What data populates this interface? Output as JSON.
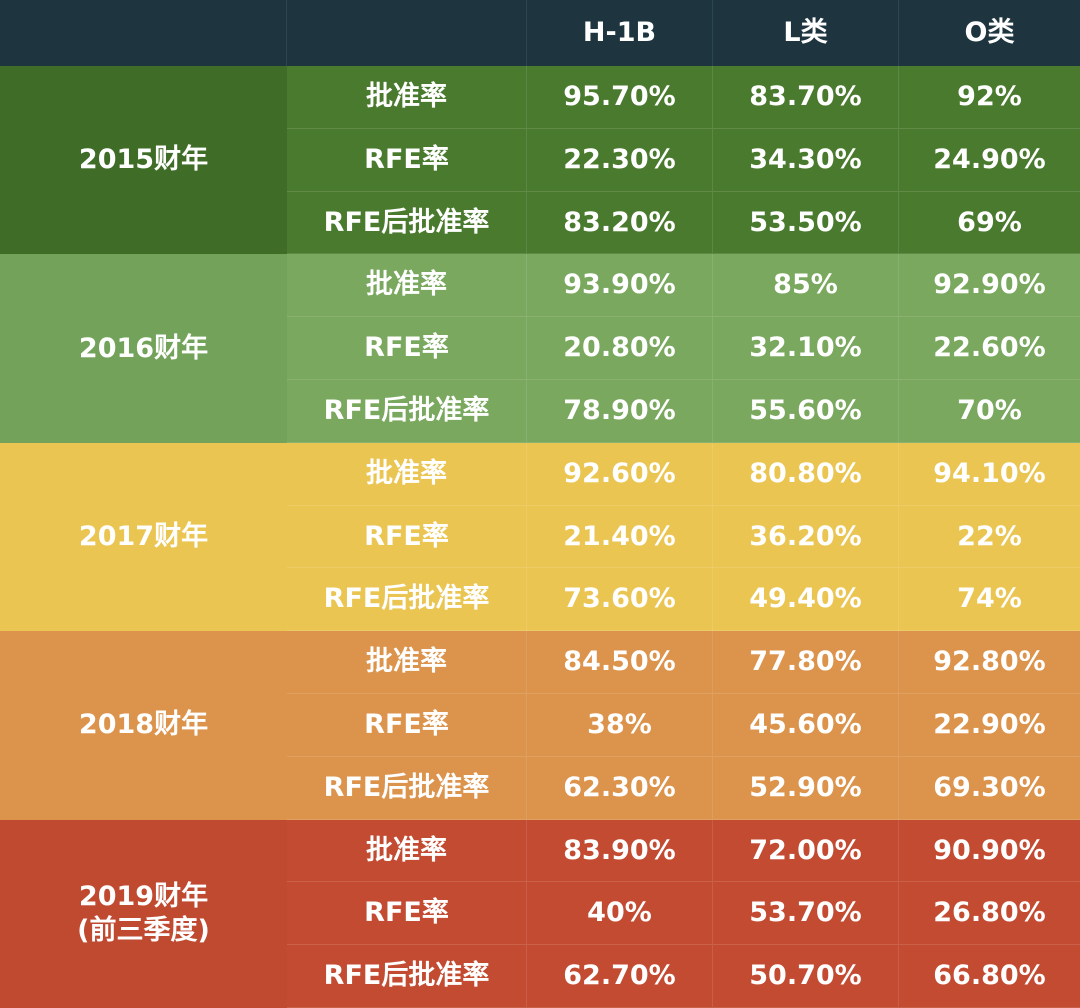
{
  "chart_data": {
    "type": "table",
    "columns": [
      "",
      "",
      "H-1B",
      "L类",
      "O类"
    ],
    "metrics": [
      "批准率",
      "RFE率",
      "RFE后批准率"
    ],
    "groups": [
      {
        "year": "2015财年",
        "color_year": "#3f6c27",
        "color_body": "#4a7a2e",
        "rows": [
          {
            "metric": "批准率",
            "values": [
              "95.70%",
              "83.70%",
              "92%"
            ]
          },
          {
            "metric": "RFE率",
            "values": [
              "22.30%",
              "34.30%",
              "24.90%"
            ]
          },
          {
            "metric": "RFE后批准率",
            "values": [
              "83.20%",
              "53.50%",
              "69%"
            ]
          }
        ]
      },
      {
        "year": "2016财年",
        "color_year": "#73a35a",
        "color_body": "#79a85e",
        "rows": [
          {
            "metric": "批准率",
            "values": [
              "93.90%",
              "85%",
              "92.90%"
            ]
          },
          {
            "metric": "RFE率",
            "values": [
              "20.80%",
              "32.10%",
              "22.60%"
            ]
          },
          {
            "metric": "RFE后批准率",
            "values": [
              "78.90%",
              "55.60%",
              "70%"
            ]
          }
        ]
      },
      {
        "year": "2017财年",
        "color_year": "#ebc552",
        "color_body": "#ebc552",
        "rows": [
          {
            "metric": "批准率",
            "values": [
              "92.60%",
              "80.80%",
              "94.10%"
            ]
          },
          {
            "metric": "RFE率",
            "values": [
              "21.40%",
              "36.20%",
              "22%"
            ]
          },
          {
            "metric": "RFE后批准率",
            "values": [
              "73.60%",
              "49.40%",
              "74%"
            ]
          }
        ]
      },
      {
        "year": "2018财年",
        "color_year": "#dc934b",
        "color_body": "#dc934b",
        "rows": [
          {
            "metric": "批准率",
            "values": [
              "84.50%",
              "77.80%",
              "92.80%"
            ]
          },
          {
            "metric": "RFE率",
            "values": [
              "38%",
              "45.60%",
              "22.90%"
            ]
          },
          {
            "metric": "RFE后批准率",
            "values": [
              "62.30%",
              "52.90%",
              "69.30%"
            ]
          }
        ]
      },
      {
        "year": "2019财年\n(前三季度)",
        "color_year": "#bf4a30",
        "color_body": "#c24b32",
        "rows": [
          {
            "metric": "批准率",
            "values": [
              "83.90%",
              "72.00%",
              "90.90%"
            ]
          },
          {
            "metric": "RFE率",
            "values": [
              "40%",
              "53.70%",
              "26.80%"
            ]
          },
          {
            "metric": "RFE后批准率",
            "values": [
              "62.70%",
              "50.70%",
              "66.80%"
            ]
          }
        ]
      }
    ]
  }
}
